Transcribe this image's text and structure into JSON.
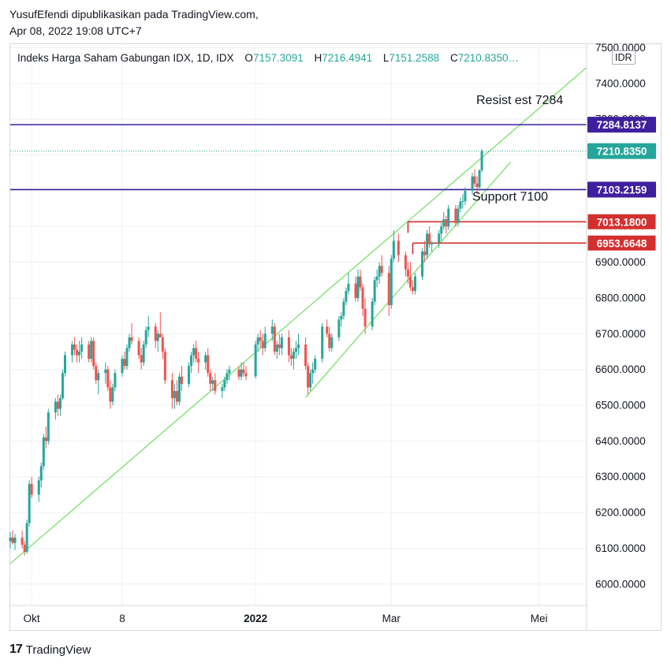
{
  "header": {
    "publisher": "YusufEfendi dipublikasikan pada TradingView.com,",
    "datetime": "Apr 08, 2022 19:08 UTC+7"
  },
  "legend": {
    "symbol": "Indeks Harga Saham Gabungan IDX, 1D, IDX",
    "o_label": "O",
    "o_value": "7157.3091",
    "h_label": "H",
    "h_value": "7216.4941",
    "l_label": "L",
    "l_value": "7151.2588",
    "c_label": "C",
    "c_value": "7210.8350…"
  },
  "currency_badge": "IDR",
  "footer": {
    "brand": "TradingView",
    "brand_mark": "17"
  },
  "colors": {
    "up": "#26a69a",
    "down": "#ef5350",
    "level": "#3f1f9e",
    "trend": "#7ae06a",
    "support_box": "#d32f2f",
    "grid": "#eef0f3"
  },
  "chart_data": {
    "type": "candlestick",
    "ylim": [
      5940,
      7510
    ],
    "y_ticks": [
      6000,
      6100,
      6200,
      6300,
      6400,
      6500,
      6600,
      6700,
      6800,
      6900,
      7000,
      7100,
      7200,
      7300,
      7400,
      7500
    ],
    "y_tick_labels": [
      "6000.0000",
      "6100.0000",
      "6200.0000",
      "6300.0000",
      "6400.0000",
      "6500.0000",
      "6600.0000",
      "6700.0000",
      "6800.0000",
      "6900.0000",
      "7000.0000",
      "7100.0000",
      "7200.0000",
      "7300.0000",
      "7400.0000",
      "7500.0000"
    ],
    "x_ticks": [
      {
        "label": "Okt",
        "date": "2021-10-01"
      },
      {
        "label": "8",
        "date": "2021-11-08"
      },
      {
        "label": "2022",
        "date": "2022-01-03"
      },
      {
        "label": "Mar",
        "date": "2022-03-01"
      },
      {
        "label": "Mei",
        "date": "2022-05-02"
      }
    ],
    "x_range": [
      "2021-09-22",
      "2022-05-22"
    ],
    "grid": true,
    "price_labels": [
      {
        "text": "7284.8137",
        "value": 7284.8137,
        "style": "level"
      },
      {
        "text": "7210.8350",
        "value": 7210.835,
        "style": "last"
      },
      {
        "text": "7103.2159",
        "value": 7103.2159,
        "style": "level"
      },
      {
        "text": "7013.1800",
        "value": 7013.18,
        "style": "box"
      },
      {
        "text": "6953.6648",
        "value": 6953.6648,
        "style": "box"
      }
    ],
    "horizontal_levels": [
      {
        "value": 7284.8137,
        "label": "Resist est 7284"
      },
      {
        "value": 7103.2159,
        "label": "Support 7100"
      }
    ],
    "support_boxes": [
      {
        "value": 7013.18,
        "from": "2022-03-08"
      },
      {
        "value": 6953.6648,
        "from": "2022-03-10"
      }
    ],
    "trend_lines": [
      {
        "from": [
          "2021-09-22",
          6057
        ],
        "to": [
          "2022-05-22",
          7445
        ]
      },
      {
        "from": [
          "2022-01-24",
          6522
        ],
        "to": [
          "2022-04-20",
          7180
        ]
      }
    ],
    "last_price": 7210.835,
    "candles": [
      [
        "2021-09-22",
        6120,
        6145,
        6100,
        6130
      ],
      [
        "2021-09-23",
        6130,
        6150,
        6110,
        6115
      ],
      [
        "2021-09-24",
        6115,
        6140,
        6095,
        6130
      ],
      [
        "2021-09-27",
        6130,
        6150,
        6100,
        6110
      ],
      [
        "2021-09-28",
        6110,
        6120,
        6080,
        6090
      ],
      [
        "2021-09-29",
        6090,
        6180,
        6085,
        6170
      ],
      [
        "2021-09-30",
        6170,
        6290,
        6160,
        6280
      ],
      [
        "2021-10-01",
        6280,
        6300,
        6240,
        6250
      ],
      [
        "2021-10-04",
        6250,
        6300,
        6230,
        6290
      ],
      [
        "2021-10-05",
        6290,
        6340,
        6270,
        6330
      ],
      [
        "2021-10-06",
        6330,
        6420,
        6320,
        6410
      ],
      [
        "2021-10-07",
        6410,
        6440,
        6380,
        6400
      ],
      [
        "2021-10-08",
        6400,
        6490,
        6390,
        6480
      ],
      [
        "2021-10-11",
        6480,
        6520,
        6460,
        6510
      ],
      [
        "2021-10-12",
        6510,
        6530,
        6470,
        6490
      ],
      [
        "2021-10-13",
        6490,
        6530,
        6470,
        6520
      ],
      [
        "2021-10-14",
        6520,
        6600,
        6515,
        6590
      ],
      [
        "2021-10-15",
        6590,
        6650,
        6580,
        6640
      ],
      [
        "2021-10-18",
        6640,
        6680,
        6620,
        6670
      ],
      [
        "2021-10-19",
        6670,
        6690,
        6640,
        6655
      ],
      [
        "2021-10-20",
        6655,
        6670,
        6620,
        6640
      ],
      [
        "2021-10-21",
        6640,
        6680,
        6620,
        6650
      ],
      [
        "2021-10-22",
        6650,
        6690,
        6630,
        6670
      ],
      [
        "2021-10-25",
        6670,
        6680,
        6620,
        6630
      ],
      [
        "2021-10-26",
        6630,
        6690,
        6620,
        6680
      ],
      [
        "2021-10-27",
        6680,
        6690,
        6600,
        6610
      ],
      [
        "2021-10-28",
        6610,
        6620,
        6560,
        6570
      ],
      [
        "2021-10-29",
        6570,
        6600,
        6530,
        6590
      ],
      [
        "2021-11-01",
        6590,
        6620,
        6560,
        6600
      ],
      [
        "2021-11-02",
        6600,
        6610,
        6540,
        6550
      ],
      [
        "2021-11-03",
        6550,
        6570,
        6490,
        6510
      ],
      [
        "2021-11-04",
        6510,
        6560,
        6500,
        6550
      ],
      [
        "2021-11-05",
        6550,
        6600,
        6540,
        6590
      ],
      [
        "2021-11-08",
        6590,
        6640,
        6580,
        6630
      ],
      [
        "2021-11-09",
        6630,
        6650,
        6600,
        6610
      ],
      [
        "2021-11-10",
        6610,
        6670,
        6600,
        6660
      ],
      [
        "2021-11-11",
        6660,
        6700,
        6650,
        6690
      ],
      [
        "2021-11-12",
        6690,
        6730,
        6670,
        6680
      ],
      [
        "2021-11-15",
        6680,
        6690,
        6630,
        6640
      ],
      [
        "2021-11-16",
        6640,
        6660,
        6600,
        6620
      ],
      [
        "2021-11-17",
        6620,
        6680,
        6610,
        6670
      ],
      [
        "2021-11-18",
        6670,
        6720,
        6660,
        6710
      ],
      [
        "2021-11-19",
        6710,
        6750,
        6690,
        6720
      ],
      [
        "2021-11-22",
        6720,
        6730,
        6660,
        6680
      ],
      [
        "2021-11-23",
        6680,
        6710,
        6650,
        6700
      ],
      [
        "2021-11-24",
        6700,
        6760,
        6690,
        6690
      ],
      [
        "2021-11-25",
        6690,
        6700,
        6630,
        6650
      ],
      [
        "2021-11-26",
        6650,
        6660,
        6560,
        6570
      ],
      [
        "2021-11-29",
        6570,
        6590,
        6490,
        6520
      ],
      [
        "2021-11-30",
        6520,
        6560,
        6490,
        6540
      ],
      [
        "2021-12-01",
        6540,
        6570,
        6500,
        6510
      ],
      [
        "2021-12-02",
        6510,
        6590,
        6500,
        6580
      ],
      [
        "2021-12-03",
        6580,
        6610,
        6540,
        6560
      ],
      [
        "2021-12-06",
        6560,
        6620,
        6550,
        6610
      ],
      [
        "2021-12-07",
        6610,
        6650,
        6590,
        6640
      ],
      [
        "2021-12-08",
        6640,
        6670,
        6620,
        6660
      ],
      [
        "2021-12-09",
        6660,
        6680,
        6620,
        6630
      ],
      [
        "2021-12-10",
        6630,
        6650,
        6590,
        6620
      ],
      [
        "2021-12-13",
        6620,
        6650,
        6600,
        6640
      ],
      [
        "2021-12-14",
        6640,
        6660,
        6580,
        6590
      ],
      [
        "2021-12-15",
        6590,
        6600,
        6540,
        6560
      ],
      [
        "2021-12-16",
        6560,
        6580,
        6540,
        6570
      ],
      [
        "2021-12-17",
        6570,
        6590,
        6530,
        6540
      ],
      [
        "2021-12-20",
        6540,
        6560,
        6520,
        6550
      ],
      [
        "2021-12-21",
        6550,
        6580,
        6540,
        6570
      ],
      [
        "2021-12-22",
        6570,
        6600,
        6560,
        6590
      ],
      [
        "2021-12-23",
        6590,
        6610,
        6570,
        6600
      ],
      [
        "2021-12-27",
        6600,
        6610,
        6570,
        6580
      ],
      [
        "2021-12-28",
        6580,
        6620,
        6570,
        6600
      ],
      [
        "2021-12-29",
        6600,
        6620,
        6580,
        6590
      ],
      [
        "2021-12-30",
        6590,
        6610,
        6570,
        6581
      ],
      [
        "2022-01-03",
        6581,
        6680,
        6575,
        6670
      ],
      [
        "2022-01-04",
        6670,
        6700,
        6650,
        6690
      ],
      [
        "2022-01-05",
        6690,
        6710,
        6660,
        6680
      ],
      [
        "2022-01-06",
        6680,
        6700,
        6640,
        6660
      ],
      [
        "2022-01-07",
        6660,
        6720,
        6650,
        6700
      ],
      [
        "2022-01-10",
        6700,
        6740,
        6680,
        6720
      ],
      [
        "2022-01-11",
        6720,
        6730,
        6640,
        6650
      ],
      [
        "2022-01-12",
        6650,
        6680,
        6630,
        6670
      ],
      [
        "2022-01-13",
        6670,
        6700,
        6640,
        6660
      ],
      [
        "2022-01-14",
        6660,
        6700,
        6640,
        6690
      ],
      [
        "2022-01-17",
        6690,
        6710,
        6620,
        6640
      ],
      [
        "2022-01-18",
        6640,
        6660,
        6610,
        6630
      ],
      [
        "2022-01-19",
        6630,
        6660,
        6600,
        6650
      ],
      [
        "2022-01-20",
        6650,
        6680,
        6630,
        6660
      ],
      [
        "2022-01-21",
        6660,
        6700,
        6640,
        6670
      ],
      [
        "2022-01-24",
        6670,
        6690,
        6600,
        6610
      ],
      [
        "2022-01-25",
        6610,
        6620,
        6530,
        6550
      ],
      [
        "2022-01-26",
        6550,
        6600,
        6540,
        6590
      ],
      [
        "2022-01-27",
        6590,
        6620,
        6560,
        6600
      ],
      [
        "2022-01-28",
        6600,
        6640,
        6590,
        6630
      ],
      [
        "2022-01-31",
        6630,
        6730,
        6620,
        6720
      ],
      [
        "2022-02-02",
        6720,
        6740,
        6690,
        6700
      ],
      [
        "2022-02-03",
        6700,
        6720,
        6650,
        6660
      ],
      [
        "2022-02-04",
        6660,
        6700,
        6650,
        6690
      ],
      [
        "2022-02-07",
        6690,
        6750,
        6680,
        6740
      ],
      [
        "2022-02-08",
        6740,
        6760,
        6720,
        6750
      ],
      [
        "2022-02-09",
        6750,
        6800,
        6740,
        6790
      ],
      [
        "2022-02-10",
        6790,
        6830,
        6780,
        6820
      ],
      [
        "2022-02-11",
        6820,
        6870,
        6810,
        6840
      ],
      [
        "2022-02-14",
        6840,
        6860,
        6790,
        6800
      ],
      [
        "2022-02-15",
        6800,
        6880,
        6790,
        6860
      ],
      [
        "2022-02-16",
        6860,
        6880,
        6820,
        6830
      ],
      [
        "2022-02-17",
        6830,
        6840,
        6750,
        6770
      ],
      [
        "2022-02-18",
        6770,
        6800,
        6700,
        6720
      ],
      [
        "2022-02-21",
        6720,
        6800,
        6710,
        6790
      ],
      [
        "2022-02-22",
        6790,
        6860,
        6780,
        6850
      ],
      [
        "2022-02-23",
        6850,
        6880,
        6830,
        6860
      ],
      [
        "2022-02-24",
        6860,
        6900,
        6840,
        6890
      ],
      [
        "2022-02-25",
        6890,
        6920,
        6860,
        6870
      ],
      [
        "2022-02-28",
        6870,
        6890,
        6750,
        6780
      ],
      [
        "2022-03-01",
        6780,
        6920,
        6770,
        6910
      ],
      [
        "2022-03-02",
        6910,
        6990,
        6900,
        6960
      ],
      [
        "2022-03-04",
        6960,
        6980,
        6900,
        6920
      ],
      [
        "2022-03-07",
        6920,
        6930,
        6860,
        6880
      ],
      [
        "2022-03-08",
        6880,
        6900,
        6840,
        6860
      ],
      [
        "2022-03-09",
        6860,
        6900,
        6820,
        6830
      ],
      [
        "2022-03-10",
        6830,
        6850,
        6810,
        6820
      ],
      [
        "2022-03-11",
        6820,
        6870,
        6810,
        6860
      ],
      [
        "2022-03-14",
        6860,
        6940,
        6850,
        6930
      ],
      [
        "2022-03-15",
        6930,
        6960,
        6900,
        6920
      ],
      [
        "2022-03-16",
        6920,
        6990,
        6910,
        6980
      ],
      [
        "2022-03-17",
        6980,
        7000,
        6940,
        6950
      ],
      [
        "2022-03-18",
        6950,
        6960,
        6930,
        6955
      ],
      [
        "2022-03-21",
        6955,
        6990,
        6940,
        6980
      ],
      [
        "2022-03-22",
        6980,
        7010,
        6960,
        7000
      ],
      [
        "2022-03-23",
        7000,
        7040,
        6990,
        7020
      ],
      [
        "2022-03-24",
        7020,
        7030,
        6980,
        7000
      ],
      [
        "2022-03-25",
        7000,
        7060,
        6990,
        7050
      ],
      [
        "2022-03-28",
        7050,
        7060,
        7000,
        7010
      ],
      [
        "2022-03-29",
        7010,
        7060,
        7000,
        7050
      ],
      [
        "2022-03-30",
        7050,
        7080,
        7040,
        7070
      ],
      [
        "2022-03-31",
        7070,
        7090,
        7050,
        7071
      ],
      [
        "2022-04-01",
        7071,
        7110,
        7060,
        7100
      ],
      [
        "2022-04-04",
        7100,
        7150,
        7090,
        7140
      ],
      [
        "2022-04-05",
        7140,
        7160,
        7110,
        7120
      ],
      [
        "2022-04-06",
        7120,
        7140,
        7090,
        7110
      ],
      [
        "2022-04-07",
        7110,
        7160,
        7100,
        7157.3091
      ],
      [
        "2022-04-08",
        7157.3091,
        7216.4941,
        7151.2588,
        7210.835
      ]
    ]
  }
}
